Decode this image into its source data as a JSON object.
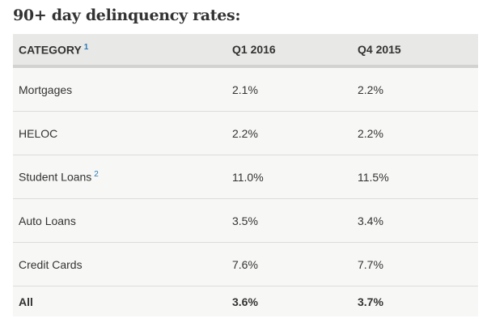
{
  "title": "90+ day delinquency rates:",
  "table": {
    "header": [
      {
        "label": "CATEGORY",
        "note": "1"
      },
      {
        "label": "Q1 2016"
      },
      {
        "label": "Q4 2015"
      }
    ],
    "rows": [
      {
        "cells": [
          "Mortgages",
          "2.1%",
          "2.2%"
        ]
      },
      {
        "cells": [
          "HELOC",
          "2.2%",
          "2.2%"
        ]
      },
      {
        "cells": [
          "Student Loans",
          "11.0%",
          "11.5%"
        ],
        "note": "2"
      },
      {
        "cells": [
          "Auto Loans",
          "3.5%",
          "3.4%"
        ]
      },
      {
        "cells": [
          "Credit Cards",
          "7.6%",
          "7.7%"
        ]
      },
      {
        "cells": [
          "All",
          "3.6%",
          "3.7%"
        ],
        "bold": true
      }
    ]
  }
}
